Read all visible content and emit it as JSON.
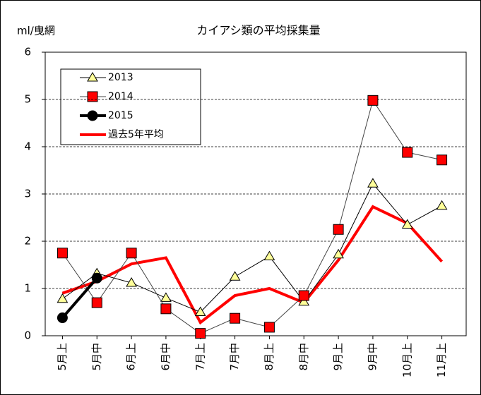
{
  "chart_data": {
    "type": "line",
    "title": "カイアシ類の平均採集量",
    "y_label": "ml/曳網",
    "categories": [
      "5月上",
      "5月中",
      "6月上",
      "6月中",
      "7月上",
      "7月中",
      "8月上",
      "8月中",
      "9月上",
      "9月中",
      "10月上",
      "11月上"
    ],
    "series": [
      {
        "name": "2013",
        "color": "#000000",
        "marker": "triangle",
        "marker_color": "#ffff99",
        "line_width": 1,
        "values": [
          0.78,
          1.32,
          1.12,
          0.8,
          0.5,
          1.25,
          1.68,
          0.72,
          1.72,
          3.22,
          2.35,
          2.75
        ]
      },
      {
        "name": "2014",
        "color": "#444444",
        "marker": "square",
        "marker_color": "#ff0000",
        "line_width": 1,
        "values": [
          1.75,
          0.7,
          1.75,
          0.57,
          0.05,
          0.37,
          0.18,
          0.85,
          2.25,
          4.98,
          3.88,
          3.72
        ]
      },
      {
        "name": "2015",
        "color": "#000000",
        "marker": "circle",
        "marker_color": "#000000",
        "line_width": 4,
        "values": [
          0.38,
          1.22,
          null,
          null,
          null,
          null,
          null,
          null,
          null,
          null,
          null,
          null
        ]
      },
      {
        "name": "過去5年平均",
        "color": "#ff0000",
        "marker": "none",
        "marker_color": "#ff0000",
        "line_width": 4,
        "values": [
          0.9,
          1.15,
          1.52,
          1.65,
          0.28,
          0.85,
          1.0,
          0.7,
          1.6,
          2.73,
          2.38,
          1.57
        ]
      }
    ],
    "ylim": [
      0,
      6
    ],
    "yticks": [
      0,
      1,
      2,
      3,
      4,
      5,
      6
    ],
    "grid": true,
    "legend": "upper left"
  }
}
